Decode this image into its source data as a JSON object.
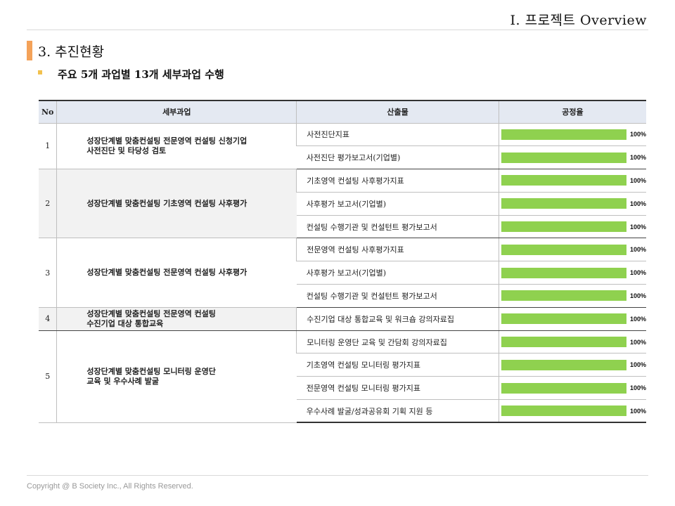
{
  "header": {
    "title": "Ⅰ. 프로젝트 Overview"
  },
  "section": {
    "title": "3. 추진현황"
  },
  "subtitle": "주요 5개 과업별 13개 세부과업 수행",
  "table": {
    "columns": [
      "No",
      "세부과업",
      "산출물",
      "공정율"
    ],
    "groups": [
      {
        "no": "1",
        "task": [
          "성장단계별 맞춤컨설팅 전문영역 컨설팅 신청기업",
          "사전진단 및 타당성 검토"
        ],
        "shaded": false,
        "outputs": [
          {
            "name": "사전진단지표",
            "progress": 100,
            "label": "100%"
          },
          {
            "name": "사전진단 평가보고서(기업별)",
            "progress": 100,
            "label": "100%"
          }
        ]
      },
      {
        "no": "2",
        "task": [
          "성장단계별 맞춤컨설팅 기초영역 컨설팅 사후평가"
        ],
        "shaded": true,
        "outputs": [
          {
            "name": "기초영역 컨설팅 사후평가지표",
            "progress": 100,
            "label": "100%"
          },
          {
            "name": "사후평가 보고서(기업별)",
            "progress": 100,
            "label": "100%"
          },
          {
            "name": "컨설팅 수행기관 및 컨설턴트 평가보고서",
            "progress": 100,
            "label": "100%"
          }
        ]
      },
      {
        "no": "3",
        "task": [
          "성장단계별 맞춤컨설팅 전문영역 컨설팅 사후평가"
        ],
        "shaded": false,
        "outputs": [
          {
            "name": "전문영역 컨설팅 사후평가지표",
            "progress": 100,
            "label": "100%"
          },
          {
            "name": "사후평가 보고서(기업별)",
            "progress": 100,
            "label": "100%"
          },
          {
            "name": "컨설팅 수행기관 및 컨설턴트 평가보고서",
            "progress": 100,
            "label": "100%"
          }
        ]
      },
      {
        "no": "4",
        "task": [
          "성장단계별 맞춤컨설팅 전문영역 컨설팅",
          "수진기업 대상 통합교육"
        ],
        "shaded": true,
        "outputs": [
          {
            "name": "수진기업 대상 통합교육 및 워크숍 강의자료집",
            "progress": 100,
            "label": "100%"
          }
        ]
      },
      {
        "no": "5",
        "task": [
          "성장단계별 맞춤컨설팅 모니터링 운영단",
          "교육 및 우수사례 발굴"
        ],
        "shaded": false,
        "outputs": [
          {
            "name": "모니터링 운영단 교육 및 간담회 강의자료집",
            "progress": 100,
            "label": "100%"
          },
          {
            "name": "기초영역 컨설팅 모니터링 평가지표",
            "progress": 100,
            "label": "100%"
          },
          {
            "name": "전문영역 컨설팅 모니터링 평가지표",
            "progress": 100,
            "label": "100%"
          },
          {
            "name": "우수사례 발굴/성과공유회 기획 지원 등",
            "progress": 100,
            "label": "100%"
          }
        ]
      }
    ]
  },
  "colors": {
    "accent": "#f4a259",
    "bullet": "#f2c14e",
    "progress_bar": "#8fd14f",
    "header_bg": "#e4e9f2"
  },
  "footer": {
    "copyright": "Copyright @ B Society Inc., All Rights Reserved."
  }
}
